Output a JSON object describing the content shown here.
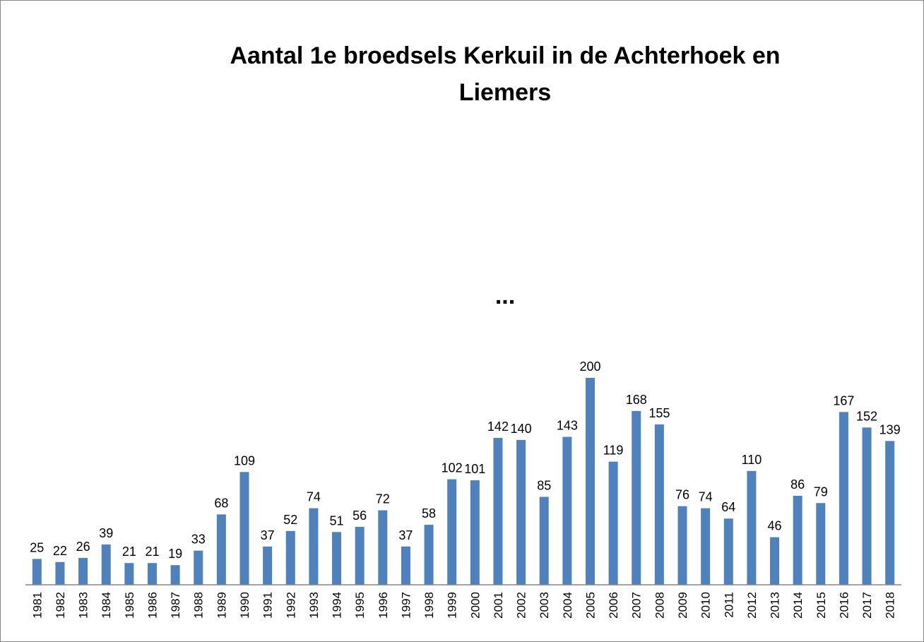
{
  "chart_data": {
    "type": "bar",
    "title": [
      "Aantal 1e broedsels Kerkuil in de Achterhoek en",
      "Liemers"
    ],
    "annotations": [
      "..."
    ],
    "categories": [
      "1981",
      "1982",
      "1983",
      "1984",
      "1985",
      "1986",
      "1987",
      "1988",
      "1989",
      "1990",
      "1991",
      "1992",
      "1993",
      "1994",
      "1995",
      "1996",
      "1997",
      "1998",
      "1999",
      "2000",
      "2001",
      "2002",
      "2003",
      "2004",
      "2005",
      "2006",
      "2007",
      "2008",
      "2009",
      "2010",
      "2011",
      "2012",
      "2013",
      "2014",
      "2015",
      "2016",
      "2017",
      "2018"
    ],
    "values": [
      25,
      22,
      26,
      39,
      21,
      21,
      19,
      33,
      68,
      109,
      37,
      52,
      74,
      51,
      56,
      72,
      37,
      58,
      102,
      101,
      142,
      140,
      85,
      143,
      200,
      119,
      168,
      155,
      76,
      74,
      64,
      110,
      46,
      86,
      79,
      167,
      152,
      139
    ],
    "color": "#4f81bd"
  }
}
